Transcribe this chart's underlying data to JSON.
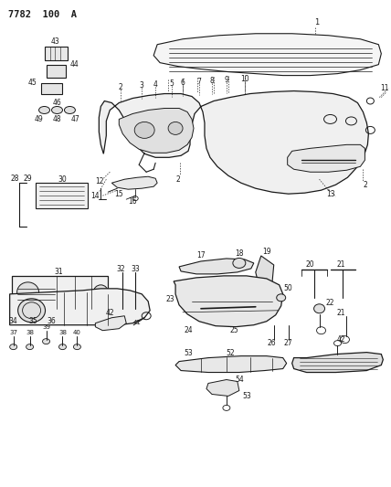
{
  "title": "7782 100 A",
  "bg_color": "#ffffff",
  "line_color": "#1a1a1a",
  "fig_width": 4.28,
  "fig_height": 5.33,
  "dpi": 100
}
